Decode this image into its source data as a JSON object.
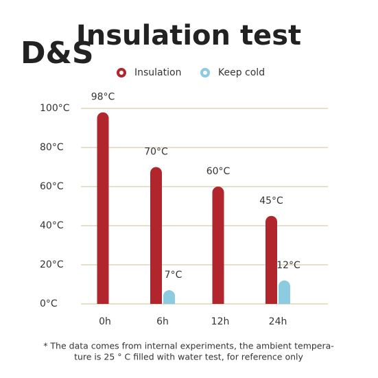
{
  "chart_data": {
    "type": "bar",
    "title": "Insulation test",
    "logo": "D&S",
    "categories": [
      "0h",
      "6h",
      "12h",
      "24h"
    ],
    "series": [
      {
        "name": "Insulation",
        "color": "#b0262c",
        "values": [
          98,
          70,
          60,
          45
        ],
        "value_labels": [
          "98°C",
          "70°C",
          "60°C",
          "45°C"
        ]
      },
      {
        "name": "Keep cold",
        "color": "#8ccbe0",
        "values": [
          null,
          7,
          null,
          12
        ],
        "value_labels": [
          null,
          "7°C",
          null,
          "12°C"
        ]
      }
    ],
    "ylim": [
      0,
      100
    ],
    "yticks": [
      {
        "value": 0,
        "label": "0°C"
      },
      {
        "value": 20,
        "label": "20°C"
      },
      {
        "value": 40,
        "label": "40°C"
      },
      {
        "value": 60,
        "label": "60°C"
      },
      {
        "value": 80,
        "label": "80°C"
      },
      {
        "value": 100,
        "label": "100°C"
      }
    ],
    "grid": true,
    "grid_color": "#cdbf96",
    "footnote": [
      "* The data comes from internal experiments, the ambient tempera-",
      "ture is 25 ° C filled with water test, for reference only"
    ]
  }
}
